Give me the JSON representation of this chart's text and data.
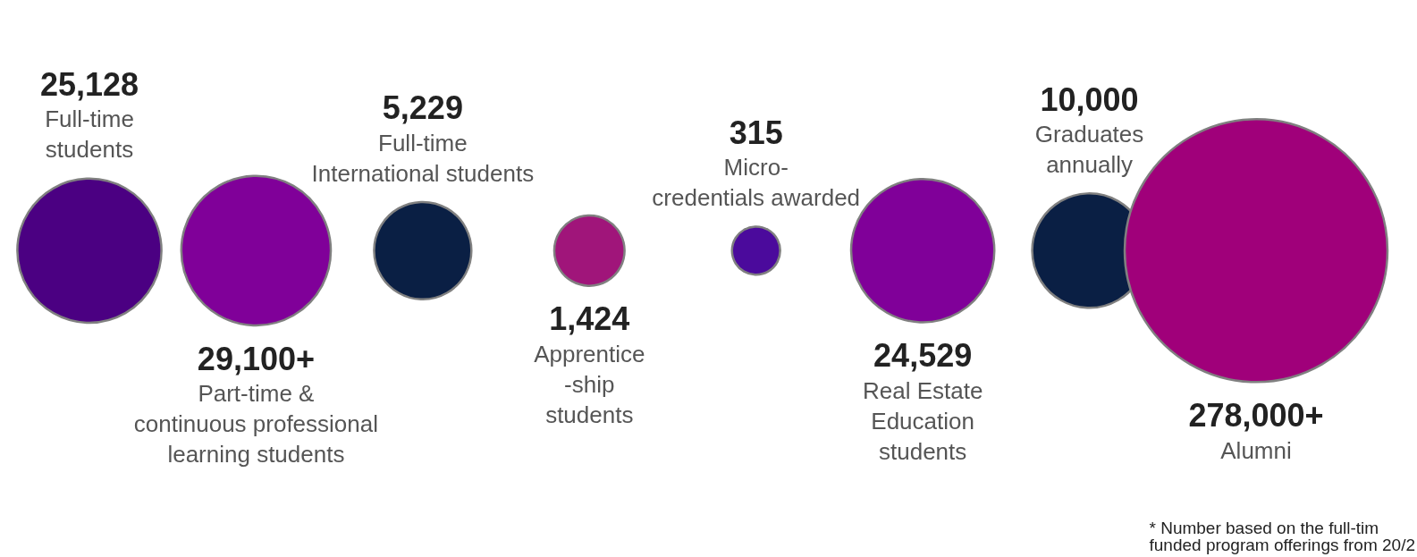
{
  "chart_data": {
    "type": "other",
    "categories": [
      "Full-time\nstudents",
      "Part-time &\ncontinuous professional\nlearning students",
      "Full-time\nInternational students",
      "Apprentice\n-ship\nstudents",
      "Micro-\ncredentials awarded",
      "Real Estate\nEducation\nstudents",
      "Graduates\nannually",
      "Alumni"
    ],
    "values": [
      25128,
      29100,
      5229,
      1424,
      315,
      24529,
      10000,
      278000
    ],
    "value_labels": [
      "25,128",
      "29,100+",
      "5,229",
      "1,424",
      "315",
      "24,529",
      "10,000",
      "278,000+"
    ],
    "colors": [
      "#4b0082",
      "#800099",
      "#0a1f44",
      "#a0157a",
      "#4b0a9c",
      "#800099",
      "#0a1f44",
      "#a0007a"
    ],
    "annotations": [
      "* Number based on the full-tim\nfunded program offerings from 20/2"
    ]
  }
}
